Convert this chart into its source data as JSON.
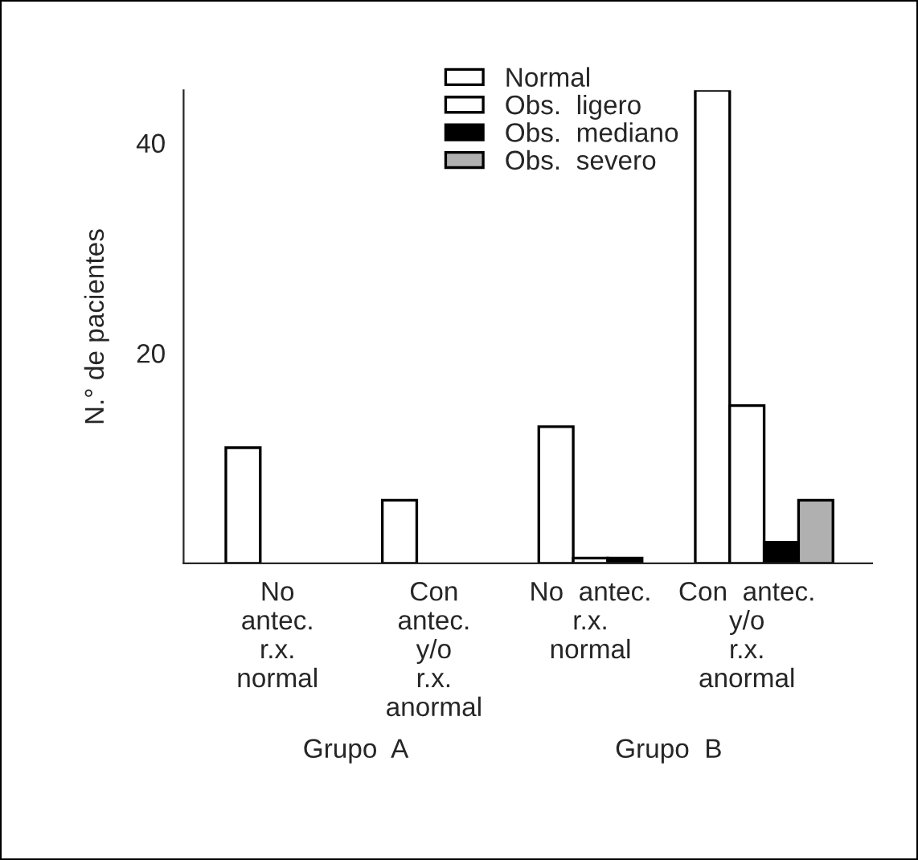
{
  "chart_data": {
    "type": "bar",
    "ylabel": "N.° de pacientes",
    "categories": [
      "No\nantec.\nr.x.\nnormal",
      "Con\nantec.\ny/o\nr.x.\nanormal",
      "No  antec.\nr.x.\nnormal",
      "Con  antec.\ny/o\nr.x.\nanormal"
    ],
    "series": [
      {
        "name": "Normal",
        "color": "#ffffff",
        "values": [
          11,
          6,
          13,
          45
        ]
      },
      {
        "name": "Obs.  ligero",
        "color": "#ffffff",
        "values": [
          null,
          null,
          0.5,
          15
        ]
      },
      {
        "name": "Obs.  mediano",
        "color": "#000000",
        "values": [
          null,
          null,
          0.5,
          2
        ]
      },
      {
        "name": "Obs.  severo",
        "color": "#b0b0b0",
        "values": [
          null,
          null,
          null,
          6
        ]
      }
    ],
    "ylim": [
      0,
      45
    ],
    "yticks": [
      20,
      40
    ],
    "grid": false,
    "legend": "top",
    "annotations": [
      "Grupo  A",
      "Grupo  B"
    ]
  }
}
